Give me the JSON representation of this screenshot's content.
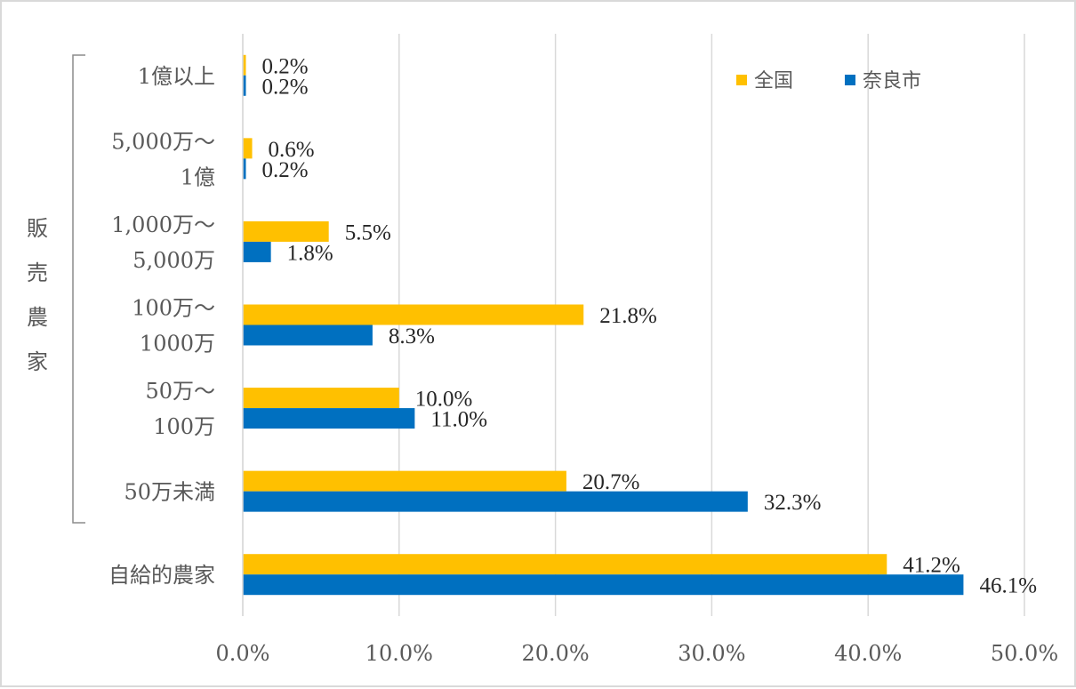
{
  "chart_data": {
    "type": "bar",
    "orientation": "horizontal",
    "categories": [
      [
        "1億以上"
      ],
      [
        "5,000万～",
        "1億"
      ],
      [
        "1,000万～",
        "5,000万"
      ],
      [
        "100万～",
        "1000万"
      ],
      [
        "50万～",
        "100万"
      ],
      [
        "50万未満"
      ],
      [
        "自給的農家"
      ]
    ],
    "series": [
      {
        "name": "全国",
        "color": "#ffc000",
        "values": [
          0.2,
          0.6,
          5.5,
          21.8,
          10.0,
          20.7,
          41.2
        ]
      },
      {
        "name": "奈良市",
        "color": "#0070c0",
        "values": [
          0.2,
          0.2,
          1.8,
          8.3,
          11.0,
          32.3,
          46.1
        ]
      }
    ],
    "value_suffix": "%",
    "xlim": [
      0,
      50
    ],
    "xticks": [
      "0.0%",
      "10.0%",
      "20.0%",
      "30.0%",
      "40.0%",
      "50.0%"
    ],
    "grid": true,
    "legend_position": "top-right",
    "group_label": "販売農家"
  }
}
